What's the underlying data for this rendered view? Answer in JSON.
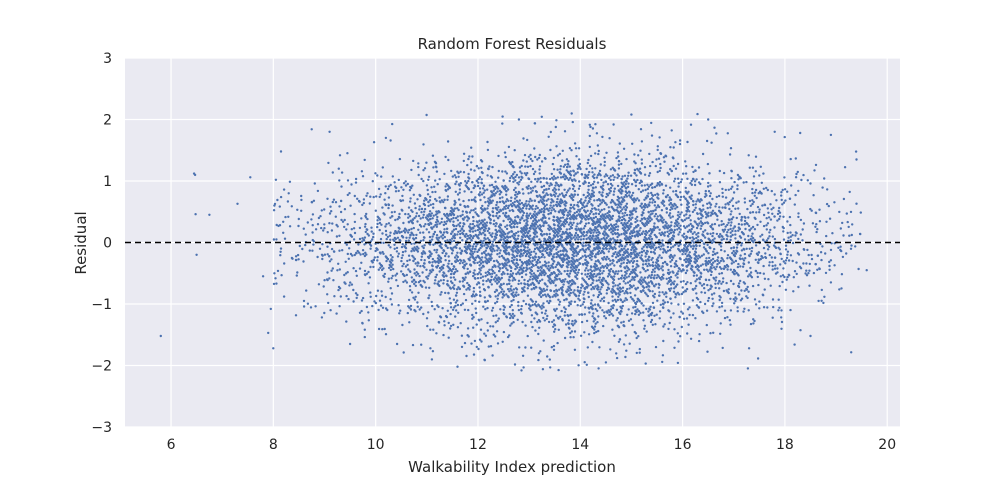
{
  "chart_data": {
    "type": "scatter",
    "title": "Random Forest Residuals",
    "xlabel": "Walkability Index prediction",
    "ylabel": "Residual",
    "xlim": [
      5.1,
      20.25
    ],
    "ylim": [
      -3,
      3
    ],
    "xticks": [
      6,
      8,
      10,
      12,
      14,
      16,
      18,
      20
    ],
    "yticks": [
      -3,
      -2,
      -1,
      0,
      1,
      2,
      3
    ],
    "xtick_labels": [
      "6",
      "8",
      "10",
      "12",
      "14",
      "16",
      "18",
      "20"
    ],
    "ytick_labels": [
      "−3",
      "−2",
      "−1",
      "0",
      "1",
      "2",
      "3"
    ],
    "grid": true,
    "reference_line": {
      "y": 0,
      "style": "dashed",
      "color": "#000000"
    },
    "series": [
      {
        "color": "#4c72b0",
        "points": [
          [
            5.8,
            -1.52
          ],
          [
            6.45,
            1.12
          ],
          [
            6.47,
            1.1
          ],
          [
            6.48,
            0.46
          ],
          [
            6.5,
            -0.2
          ],
          [
            6.75,
            0.45
          ],
          [
            7.3,
            0.63
          ],
          [
            7.55,
            1.06
          ],
          [
            7.8,
            -0.55
          ],
          [
            7.9,
            -1.47
          ],
          [
            7.95,
            -1.08
          ],
          [
            8.0,
            -1.72
          ],
          [
            8.02,
            0.6
          ],
          [
            8.05,
            1.02
          ],
          [
            8.1,
            0.27
          ],
          [
            8.15,
            1.48
          ],
          [
            8.3,
            0.8
          ],
          [
            8.6,
            -0.95
          ],
          [
            8.75,
            1.84
          ],
          [
            9.1,
            1.8
          ],
          [
            9.5,
            -1.65
          ],
          [
            10.2,
            1.7
          ],
          [
            11.1,
            -1.9
          ],
          [
            12.8,
            2.0
          ],
          [
            12.85,
            -2.08
          ],
          [
            11.6,
            -2.02
          ],
          [
            14.2,
            1.88
          ],
          [
            15.0,
            2.08
          ],
          [
            16.5,
            2.0
          ],
          [
            14.5,
            -1.95
          ],
          [
            17.3,
            -1.72
          ],
          [
            18.5,
            -1.52
          ],
          [
            19.4,
            1.35
          ],
          [
            19.6,
            -0.45
          ],
          [
            18.9,
            1.75
          ],
          [
            18.3,
            1.78
          ],
          [
            17.8,
            1.8
          ]
        ],
        "bulk_region": {
          "x_range": [
            8.0,
            19.5
          ],
          "center_x": 13.8,
          "residual_sd": 0.75,
          "residual_range": [
            -2.1,
            2.1
          ]
        }
      }
    ]
  }
}
